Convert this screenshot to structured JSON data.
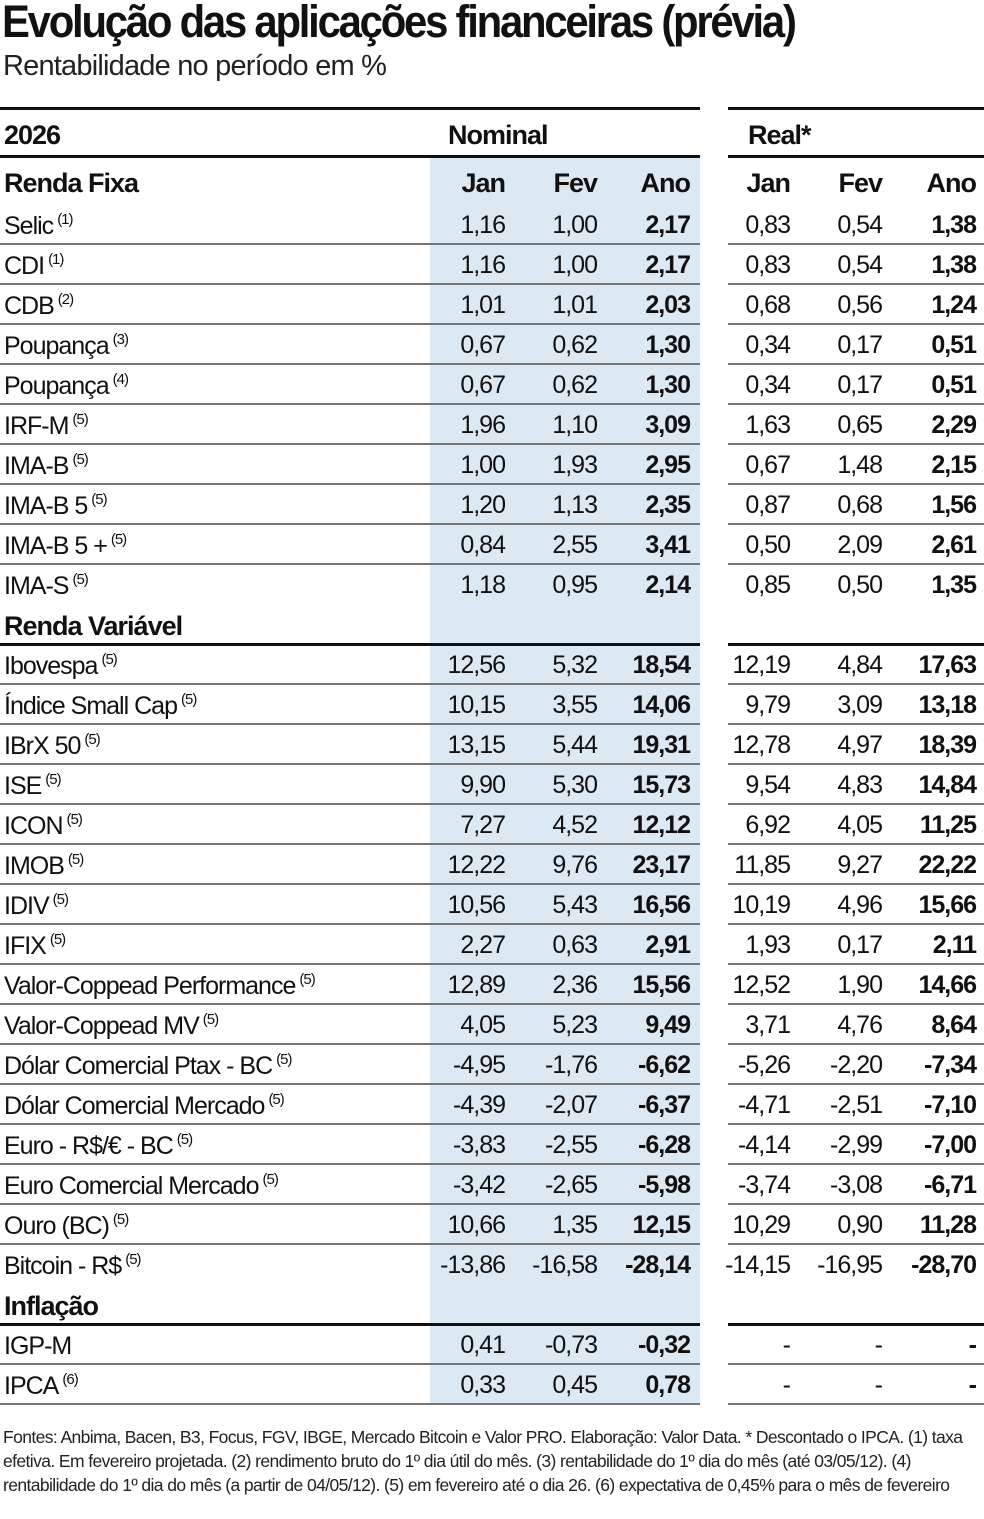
{
  "title": "Evolução das aplicações financeiras (prévia)",
  "subtitle": "Rentabilidade no período em %",
  "header": {
    "year": "2026",
    "nominal": "Nominal",
    "real": "Real*",
    "cols": [
      "Jan",
      "Fev",
      "Ano"
    ]
  },
  "sections": [
    {
      "title": "Renda Fixa",
      "rows": [
        {
          "label": "Selic",
          "note": "(1)",
          "nominal": [
            "1,16",
            "1,00",
            "2,17"
          ],
          "real": [
            "0,83",
            "0,54",
            "1,38"
          ]
        },
        {
          "label": "CDI",
          "note": "(1)",
          "nominal": [
            "1,16",
            "1,00",
            "2,17"
          ],
          "real": [
            "0,83",
            "0,54",
            "1,38"
          ]
        },
        {
          "label": "CDB",
          "note": "(2)",
          "nominal": [
            "1,01",
            "1,01",
            "2,03"
          ],
          "real": [
            "0,68",
            "0,56",
            "1,24"
          ]
        },
        {
          "label": "Poupança",
          "note": "(3)",
          "nominal": [
            "0,67",
            "0,62",
            "1,30"
          ],
          "real": [
            "0,34",
            "0,17",
            "0,51"
          ]
        },
        {
          "label": "Poupança",
          "note": "(4)",
          "nominal": [
            "0,67",
            "0,62",
            "1,30"
          ],
          "real": [
            "0,34",
            "0,17",
            "0,51"
          ]
        },
        {
          "label": "IRF-M",
          "note": "(5)",
          "nominal": [
            "1,96",
            "1,10",
            "3,09"
          ],
          "real": [
            "1,63",
            "0,65",
            "2,29"
          ]
        },
        {
          "label": "IMA-B",
          "note": "(5)",
          "nominal": [
            "1,00",
            "1,93",
            "2,95"
          ],
          "real": [
            "0,67",
            "1,48",
            "2,15"
          ]
        },
        {
          "label": "IMA-B 5",
          "note": "(5)",
          "nominal": [
            "1,20",
            "1,13",
            "2,35"
          ],
          "real": [
            "0,87",
            "0,68",
            "1,56"
          ]
        },
        {
          "label": "IMA-B 5 +",
          "note": "(5)",
          "nominal": [
            "0,84",
            "2,55",
            "3,41"
          ],
          "real": [
            "0,50",
            "2,09",
            "2,61"
          ]
        },
        {
          "label": "IMA-S",
          "note": "(5)",
          "nominal": [
            "1,18",
            "0,95",
            "2,14"
          ],
          "real": [
            "0,85",
            "0,50",
            "1,35"
          ]
        }
      ]
    },
    {
      "title": "Renda Variável",
      "rows": [
        {
          "label": "Ibovespa",
          "note": "(5)",
          "nominal": [
            "12,56",
            "5,32",
            "18,54"
          ],
          "real": [
            "12,19",
            "4,84",
            "17,63"
          ]
        },
        {
          "label": "Índice Small Cap",
          "note": "(5)",
          "nominal": [
            "10,15",
            "3,55",
            "14,06"
          ],
          "real": [
            "9,79",
            "3,09",
            "13,18"
          ]
        },
        {
          "label": "IBrX 50",
          "note": "(5)",
          "nominal": [
            "13,15",
            "5,44",
            "19,31"
          ],
          "real": [
            "12,78",
            "4,97",
            "18,39"
          ]
        },
        {
          "label": "ISE",
          "note": "(5)",
          "nominal": [
            "9,90",
            "5,30",
            "15,73"
          ],
          "real": [
            "9,54",
            "4,83",
            "14,84"
          ]
        },
        {
          "label": "ICON",
          "note": "(5)",
          "nominal": [
            "7,27",
            "4,52",
            "12,12"
          ],
          "real": [
            "6,92",
            "4,05",
            "11,25"
          ]
        },
        {
          "label": "IMOB",
          "note": "(5)",
          "nominal": [
            "12,22",
            "9,76",
            "23,17"
          ],
          "real": [
            "11,85",
            "9,27",
            "22,22"
          ]
        },
        {
          "label": "IDIV",
          "note": "(5)",
          "nominal": [
            "10,56",
            "5,43",
            "16,56"
          ],
          "real": [
            "10,19",
            "4,96",
            "15,66"
          ]
        },
        {
          "label": "IFIX",
          "note": "(5)",
          "nominal": [
            "2,27",
            "0,63",
            "2,91"
          ],
          "real": [
            "1,93",
            "0,17",
            "2,11"
          ]
        },
        {
          "label": "Valor-Coppead Performance",
          "note": "(5)",
          "nominal": [
            "12,89",
            "2,36",
            "15,56"
          ],
          "real": [
            "12,52",
            "1,90",
            "14,66"
          ]
        },
        {
          "label": "Valor-Coppead MV",
          "note": "(5)",
          "nominal": [
            "4,05",
            "5,23",
            "9,49"
          ],
          "real": [
            "3,71",
            "4,76",
            "8,64"
          ]
        },
        {
          "label": "Dólar Comercial Ptax - BC",
          "note": "(5)",
          "nominal": [
            "-4,95",
            "-1,76",
            "-6,62"
          ],
          "real": [
            "-5,26",
            "-2,20",
            "-7,34"
          ]
        },
        {
          "label": "Dólar Comercial Mercado",
          "note": "(5)",
          "nominal": [
            "-4,39",
            "-2,07",
            "-6,37"
          ],
          "real": [
            "-4,71",
            "-2,51",
            "-7,10"
          ]
        },
        {
          "label": "Euro - R$/€ - BC",
          "note": "(5)",
          "nominal": [
            "-3,83",
            "-2,55",
            "-6,28"
          ],
          "real": [
            "-4,14",
            "-2,99",
            "-7,00"
          ]
        },
        {
          "label": "Euro Comercial Mercado",
          "note": "(5)",
          "nominal": [
            "-3,42",
            "-2,65",
            "-5,98"
          ],
          "real": [
            "-3,74",
            "-3,08",
            "-6,71"
          ]
        },
        {
          "label": "Ouro (BC)",
          "note": "(5)",
          "nominal": [
            "10,66",
            "1,35",
            "12,15"
          ],
          "real": [
            "10,29",
            "0,90",
            "11,28"
          ]
        },
        {
          "label": "Bitcoin - R$",
          "note": "(5)",
          "nominal": [
            "-13,86",
            "-16,58",
            "-28,14"
          ],
          "real": [
            "-14,15",
            "-16,95",
            "-28,70"
          ]
        }
      ]
    },
    {
      "title": "Inflação",
      "rows": [
        {
          "label": "IGP-M",
          "note": "",
          "nominal": [
            "0,41",
            "-0,73",
            "-0,32"
          ],
          "real": [
            "-",
            "-",
            "-"
          ]
        },
        {
          "label": "IPCA",
          "note": "(6)",
          "nominal": [
            "0,33",
            "0,45",
            "0,78"
          ],
          "real": [
            "-",
            "-",
            "-"
          ]
        }
      ]
    }
  ],
  "footnote": "Fontes: Anbima, Bacen, B3, Focus, FGV, IBGE, Mercado Bitcoin  e Valor PRO. Elaboração: Valor Data. * Descontado o IPCA. (1) taxa efetiva. Em fevereiro projetada. (2) rendimento bruto do 1º dia útil do mês. (3) rentabilidade do 1º dia do mês (até 03/05/12). (4)  rentabilidade do 1º dia do mês (a partir de 04/05/12). (5) em fevereiro até o dia 26.  (6) expectativa de 0,45%  para o mês de fevereiro",
  "colors": {
    "band": "#dce9f2",
    "text": "#111111"
  }
}
